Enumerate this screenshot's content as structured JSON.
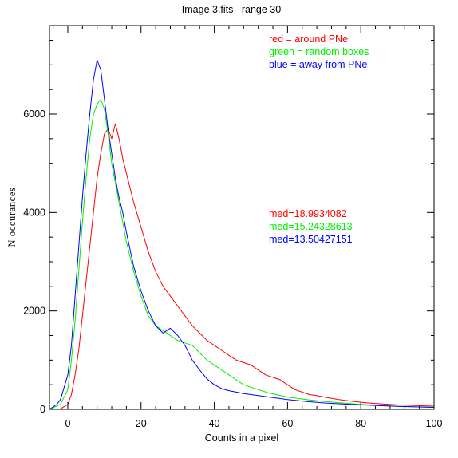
{
  "chart_data": {
    "type": "line",
    "title": "Image 3.fits   range 30",
    "xlabel": "Counts in a pixel",
    "ylabel": "N occurances",
    "xlim": [
      -5,
      100
    ],
    "ylim": [
      0,
      7800
    ],
    "xticks": [
      0,
      20,
      40,
      60,
      80,
      100
    ],
    "xtick_labels": [
      "0",
      "20",
      "40",
      "60",
      "80",
      "100"
    ],
    "yticks": [
      0,
      2000,
      4000,
      6000
    ],
    "ytick_labels": [
      "0",
      "2000",
      "4000",
      "6000"
    ],
    "grid": false,
    "legend": [
      {
        "text": "red = around PNe",
        "color": "#ff0000"
      },
      {
        "text": "green = random boxes",
        "color": "#00ee00"
      },
      {
        "text": "blue = away from PNe",
        "color": "#0000ff"
      }
    ],
    "medians": [
      {
        "text": "med=18.9934082",
        "color": "#ff0000"
      },
      {
        "text": "med=15.24328613",
        "color": "#00ee00"
      },
      {
        "text": "med=13.50427151",
        "color": "#0000ff"
      }
    ],
    "series": [
      {
        "color": "#ff0000",
        "x": [
          -5,
          -2,
          0,
          1,
          2,
          3,
          4,
          5,
          6,
          7,
          8,
          9,
          10,
          11,
          12,
          13,
          14,
          15,
          16,
          17,
          18,
          20,
          22,
          24,
          26,
          28,
          30,
          32,
          34,
          36,
          38,
          40,
          42,
          44,
          46,
          48,
          50,
          52,
          54,
          56,
          58,
          60,
          62,
          64,
          66,
          68,
          70,
          74,
          78,
          82,
          86,
          90,
          94,
          98,
          100
        ],
        "y": [
          0,
          10,
          100,
          300,
          700,
          1200,
          1900,
          2600,
          3300,
          4000,
          4700,
          5200,
          5600,
          5700,
          5500,
          5800,
          5500,
          5100,
          4800,
          4500,
          4200,
          3700,
          3200,
          2800,
          2500,
          2300,
          2100,
          1900,
          1700,
          1550,
          1400,
          1300,
          1200,
          1100,
          1000,
          950,
          900,
          800,
          700,
          650,
          600,
          500,
          400,
          350,
          300,
          280,
          250,
          200,
          160,
          130,
          110,
          90,
          80,
          70,
          65
        ]
      },
      {
        "color": "#00ee00",
        "x": [
          -5,
          -2,
          0,
          1,
          2,
          3,
          4,
          5,
          6,
          7,
          8,
          9,
          10,
          11,
          12,
          13,
          14,
          15,
          16,
          18,
          20,
          22,
          24,
          26,
          28,
          30,
          32,
          34,
          36,
          38,
          40,
          42,
          44,
          46,
          48,
          50,
          52,
          55,
          60,
          65,
          70,
          75,
          80,
          85,
          90,
          95,
          100
        ],
        "y": [
          0,
          100,
          400,
          1000,
          1800,
          2800,
          3800,
          4700,
          5500,
          6000,
          6200,
          6300,
          6100,
          5600,
          5000,
          4600,
          4200,
          3800,
          3400,
          2800,
          2300,
          1900,
          1700,
          1600,
          1500,
          1400,
          1350,
          1300,
          1150,
          1000,
          900,
          800,
          700,
          600,
          500,
          450,
          400,
          330,
          250,
          200,
          160,
          130,
          100,
          80,
          60,
          50,
          40
        ]
      },
      {
        "color": "#0000ff",
        "x": [
          -5,
          -3,
          -2,
          0,
          1,
          2,
          3,
          4,
          5,
          6,
          7,
          8,
          9,
          10,
          11,
          12,
          13,
          14,
          15,
          16,
          18,
          20,
          22,
          24,
          26,
          28,
          30,
          32,
          34,
          36,
          38,
          40,
          42,
          44,
          46,
          48,
          50,
          52,
          55,
          60,
          65,
          70,
          75,
          80,
          85,
          90,
          95,
          100
        ],
        "y": [
          0,
          100,
          200,
          700,
          1300,
          2300,
          3300,
          4300,
          5200,
          6000,
          6700,
          7100,
          6900,
          6300,
          5700,
          5200,
          4700,
          4300,
          4000,
          3600,
          2900,
          2400,
          2000,
          1700,
          1550,
          1650,
          1500,
          1300,
          1000,
          800,
          620,
          500,
          420,
          380,
          350,
          320,
          300,
          280,
          250,
          200,
          160,
          130,
          110,
          90,
          75,
          60,
          50,
          40
        ]
      }
    ]
  }
}
